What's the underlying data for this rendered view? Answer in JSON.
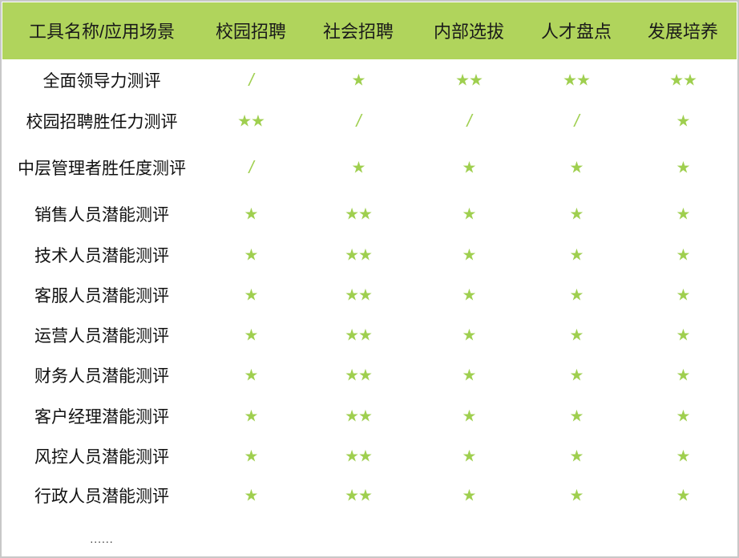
{
  "colors": {
    "header_bg": "#b0d45c",
    "mark": "#9fcf4f"
  },
  "header": [
    "工具名称/应用场景",
    "校园招聘",
    "社会招聘",
    "内部选拔",
    "人才盘点",
    "发展培养"
  ],
  "rows": [
    {
      "name": "全面领导力测评",
      "values": [
        "/",
        "★",
        "★★",
        "★★",
        "★★"
      ]
    },
    {
      "name": "校园招聘胜任力测评",
      "values": [
        "★★",
        "/",
        "/",
        "/",
        "★"
      ]
    },
    {
      "name": "中层管理者胜任度测评",
      "values": [
        "/",
        "★",
        "★",
        "★",
        "★"
      ]
    },
    {
      "name": "销售人员潜能测评",
      "values": [
        "★",
        "★★",
        "★",
        "★",
        "★"
      ]
    },
    {
      "name": "技术人员潜能测评",
      "values": [
        "★",
        "★★",
        "★",
        "★",
        "★"
      ]
    },
    {
      "name": "客服人员潜能测评",
      "values": [
        "★",
        "★★",
        "★",
        "★",
        "★"
      ]
    },
    {
      "name": "运营人员潜能测评",
      "values": [
        "★",
        "★★",
        "★",
        "★",
        "★"
      ]
    },
    {
      "name": "财务人员潜能测评",
      "values": [
        "★",
        "★★",
        "★",
        "★",
        "★"
      ]
    },
    {
      "name": "客户经理潜能测评",
      "values": [
        "★",
        "★★",
        "★",
        "★",
        "★"
      ]
    },
    {
      "name": "风控人员潜能测评",
      "values": [
        "★",
        "★★",
        "★",
        "★",
        "★"
      ]
    },
    {
      "name": "行政人员潜能测评",
      "values": [
        "★",
        "★★",
        "★",
        "★",
        "★"
      ]
    }
  ],
  "more": "......"
}
